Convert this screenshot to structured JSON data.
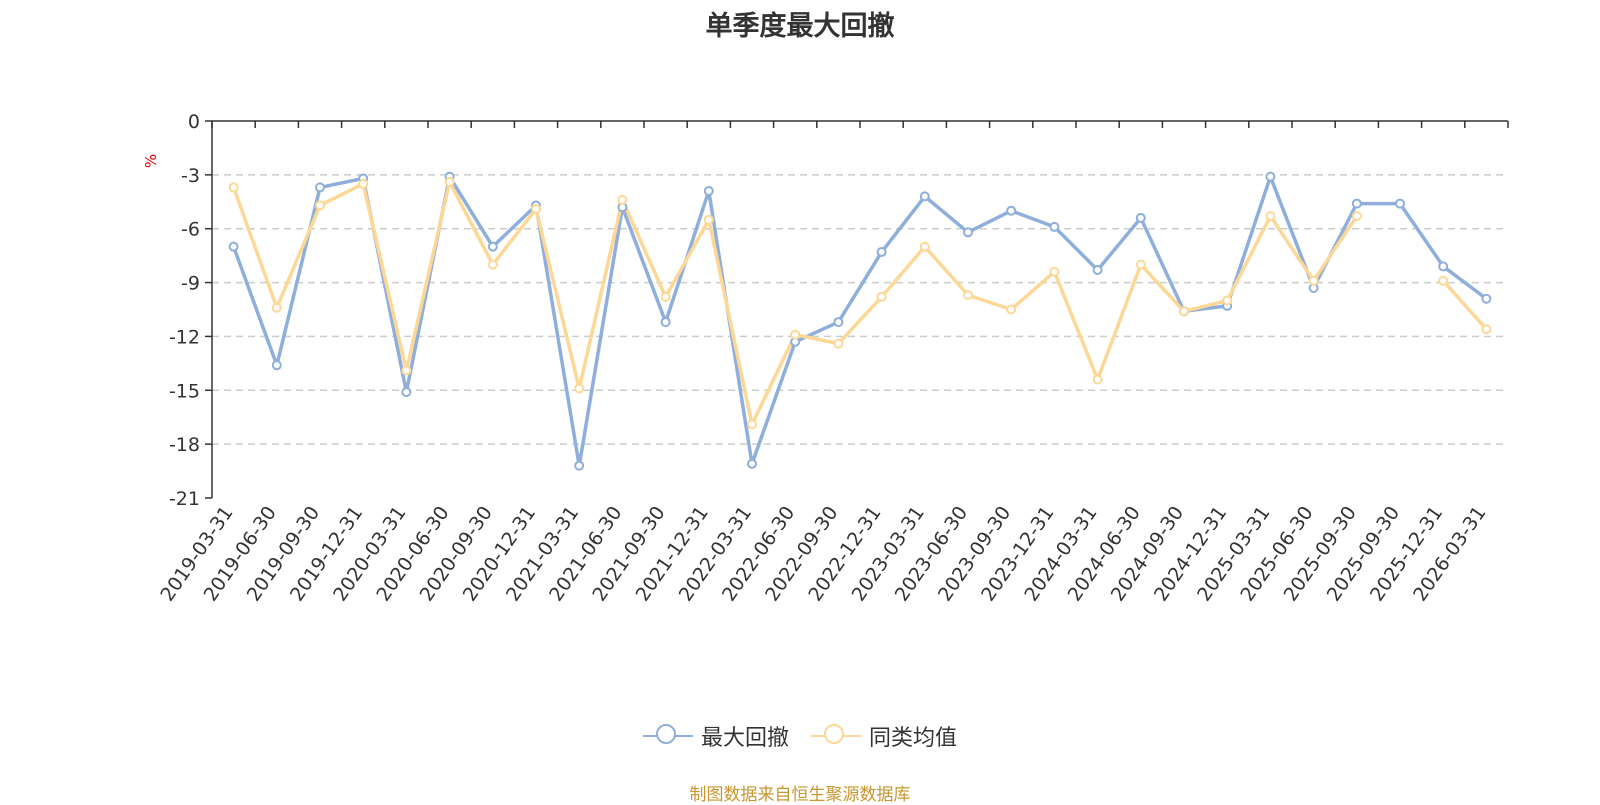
{
  "colors": {
    "series1": "#8eaedb",
    "series2": "#fdd795",
    "axis": "#333333",
    "grid": "#cccccc",
    "unit": "#e60000",
    "source": "#c8962e"
  },
  "footer": {
    "source": "制图数据来自恒生聚源数据库"
  },
  "chart_data": {
    "type": "line",
    "title": "单季度最大回撤",
    "ylabel": "%",
    "ylim": [
      -21,
      0
    ],
    "yticks": [
      0,
      -3,
      -6,
      -9,
      -12,
      -15,
      -18,
      -21
    ],
    "grid": "horizontal-dashed",
    "legend_position": "bottom-center",
    "categories": [
      "2019-03-31",
      "2019-06-30",
      "2019-09-30",
      "2019-12-31",
      "2020-03-31",
      "2020-06-30",
      "2020-09-30",
      "2020-12-31",
      "2021-03-31",
      "2021-06-30",
      "2021-09-30",
      "2021-12-31",
      "2022-03-31",
      "2022-06-30",
      "2022-09-30",
      "2022-12-31",
      "2023-03-31",
      "2023-06-30",
      "2023-09-30",
      "2023-12-31",
      "2024-03-31",
      "2024-06-30",
      "2024-09-30",
      "2024-12-31",
      "2025-03-31",
      "2025-06-30",
      "2025-09-30",
      "2025-09-30",
      "2025-12-31",
      "2026-03-31"
    ],
    "series": [
      {
        "name": "最大回撤",
        "values": [
          -7.0,
          -13.6,
          -3.7,
          -3.2,
          -15.1,
          -3.1,
          -7.0,
          -4.7,
          -19.2,
          -4.8,
          -11.2,
          -3.9,
          -19.1,
          -12.3,
          -11.2,
          -7.3,
          -4.2,
          -6.2,
          -5.0,
          -5.9,
          -8.3,
          -5.4,
          -10.6,
          -10.3,
          -3.1,
          -9.3,
          -4.6,
          -4.6,
          -8.1,
          -9.9
        ]
      },
      {
        "name": "同类均值",
        "values": [
          -3.7,
          -10.4,
          -4.7,
          -3.5,
          -13.9,
          -3.4,
          -8.0,
          -4.9,
          -14.9,
          -4.4,
          -9.8,
          -5.5,
          -16.9,
          -11.9,
          -12.4,
          -9.8,
          -7.0,
          -9.7,
          -10.5,
          -8.4,
          -14.4,
          -8.0,
          -10.6,
          -10.0,
          -5.3,
          -8.9,
          -5.3,
          null,
          -8.9,
          -11.6
        ]
      }
    ]
  }
}
